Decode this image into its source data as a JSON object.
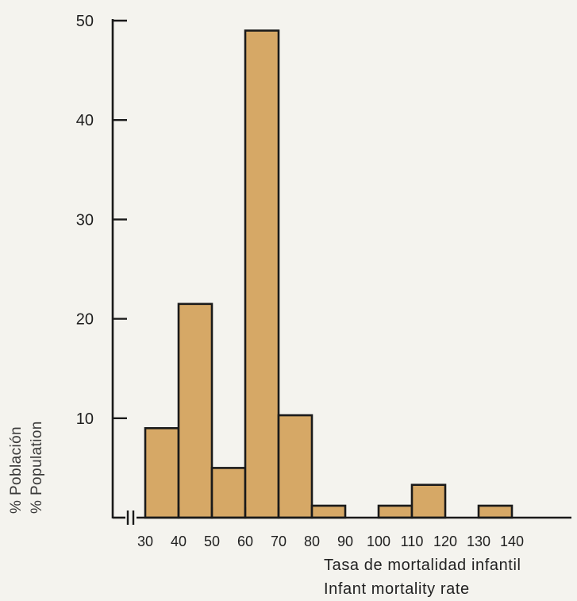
{
  "chart_data": {
    "type": "bar",
    "title": "",
    "xlabel": [
      "Tasa de mortalidad infantil",
      "Infant mortality rate"
    ],
    "ylabel": [
      "% Población",
      "% Population"
    ],
    "x_tick_labels": [
      "30",
      "40",
      "50",
      "60",
      "70",
      "80",
      "90",
      "100",
      "110",
      "120",
      "130",
      "140"
    ],
    "y_ticks": [
      10,
      20,
      30,
      40,
      50
    ],
    "ylim": [
      0,
      50
    ],
    "xlim": [
      30,
      140
    ],
    "bin_width": 10,
    "bins": [
      {
        "x0": 30,
        "x1": 40,
        "value": 9
      },
      {
        "x0": 40,
        "x1": 50,
        "value": 21.5
      },
      {
        "x0": 50,
        "x1": 60,
        "value": 5
      },
      {
        "x0": 60,
        "x1": 70,
        "value": 49
      },
      {
        "x0": 70,
        "x1": 80,
        "value": 10.3
      },
      {
        "x0": 80,
        "x1": 90,
        "value": 1.2
      },
      {
        "x0": 90,
        "x1": 100,
        "value": 0
      },
      {
        "x0": 100,
        "x1": 110,
        "value": 1.2
      },
      {
        "x0": 110,
        "x1": 120,
        "value": 3.3
      },
      {
        "x0": 120,
        "x1": 130,
        "value": 0
      },
      {
        "x0": 130,
        "x1": 140,
        "value": 1.2
      }
    ],
    "axis_break": true,
    "grid": false,
    "colors": {
      "bar_fill": "#d6a866",
      "bar_stroke": "#1a1a1a",
      "axis": "#1a1a1a"
    }
  }
}
